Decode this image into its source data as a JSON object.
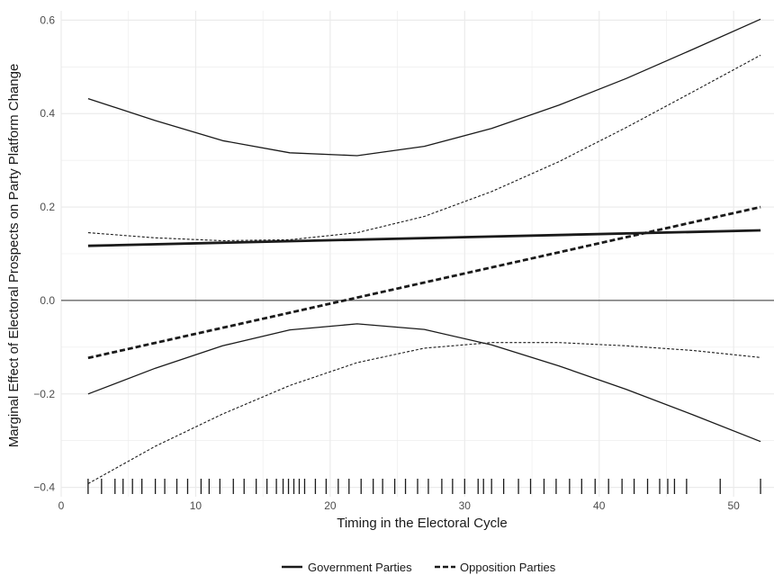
{
  "chart_data": {
    "type": "line",
    "xlabel": "Timing in the Electoral Cycle",
    "ylabel": "Marginal Effect of Electoral Prospects on Party Platform Change",
    "xlim": [
      0,
      53
    ],
    "ylim": [
      -0.42,
      0.62
    ],
    "x_ticks": [
      0,
      10,
      20,
      30,
      40,
      50
    ],
    "y_ticks": [
      -0.4,
      -0.2,
      0.0,
      0.2,
      0.4,
      0.6
    ],
    "x_tick_labels": [
      "0",
      "10",
      "20",
      "30",
      "40",
      "50"
    ],
    "y_tick_labels": [
      "−0.4",
      "−0.2",
      "0.0",
      "0.2",
      "0.4",
      "0.6"
    ],
    "grid": true,
    "reference_line_y": 0,
    "legend_position": "bottom",
    "series": [
      {
        "name": "Government Parties",
        "role": "estimate",
        "style": "solid",
        "x": [
          2,
          52
        ],
        "values": [
          0.117,
          0.15
        ]
      },
      {
        "name": "Government Parties",
        "role": "upper-ci",
        "style": "solid-thin",
        "x": [
          2,
          7,
          12,
          17,
          22,
          27,
          32,
          37,
          42,
          47,
          52
        ],
        "values": [
          0.432,
          0.385,
          0.342,
          0.316,
          0.31,
          0.33,
          0.368,
          0.418,
          0.475,
          0.538,
          0.602
        ]
      },
      {
        "name": "Government Parties",
        "role": "lower-ci",
        "style": "solid-thin",
        "x": [
          2,
          7,
          12,
          17,
          22,
          27,
          32,
          37,
          42,
          47,
          52
        ],
        "values": [
          -0.2,
          -0.145,
          -0.097,
          -0.063,
          -0.05,
          -0.062,
          -0.095,
          -0.14,
          -0.19,
          -0.245,
          -0.302
        ]
      },
      {
        "name": "Opposition Parties",
        "role": "estimate",
        "style": "dashed",
        "x": [
          2,
          52
        ],
        "values": [
          -0.123,
          0.2
        ]
      },
      {
        "name": "Opposition Parties",
        "role": "upper-ci",
        "style": "dotted-thin",
        "x": [
          2,
          7,
          12,
          17,
          22,
          27,
          32,
          37,
          42,
          47,
          52
        ],
        "values": [
          0.145,
          0.134,
          0.128,
          0.13,
          0.145,
          0.18,
          0.233,
          0.297,
          0.37,
          0.447,
          0.525
        ]
      },
      {
        "name": "Opposition Parties",
        "role": "lower-ci",
        "style": "dotted-thin",
        "x": [
          2,
          7,
          12,
          17,
          22,
          27,
          32,
          37,
          42,
          47,
          52
        ],
        "values": [
          -0.392,
          -0.312,
          -0.243,
          -0.182,
          -0.133,
          -0.102,
          -0.09,
          -0.09,
          -0.097,
          -0.107,
          -0.122
        ]
      }
    ],
    "rug_x": [
      2,
      3,
      4,
      4.6,
      5.3,
      6,
      7,
      7.7,
      8.6,
      9.4,
      10.4,
      11,
      11.8,
      12.8,
      13.6,
      14.5,
      15.3,
      16,
      16.5,
      16.9,
      17.3,
      17.7,
      18.1,
      18.9,
      19.7,
      20.6,
      21.4,
      22.3,
      23.2,
      23.9,
      24.8,
      25.6,
      26.5,
      27.3,
      28.3,
      29.1,
      30,
      31,
      31.4,
      32,
      32.9,
      34,
      34.9,
      35.9,
      36.8,
      37.8,
      38.7,
      39.7,
      40.7,
      41.7,
      42.6,
      43.6,
      44.5,
      45.1,
      45.6,
      46.5,
      49,
      52
    ]
  },
  "legend": {
    "items": [
      {
        "label": "Government Parties",
        "style": "solid"
      },
      {
        "label": "Opposition Parties",
        "style": "dashed"
      }
    ]
  },
  "colors": {
    "line": "#1a1a1a",
    "grid": "#ebebeb",
    "zero_line": "#333333",
    "background": "#ffffff"
  }
}
